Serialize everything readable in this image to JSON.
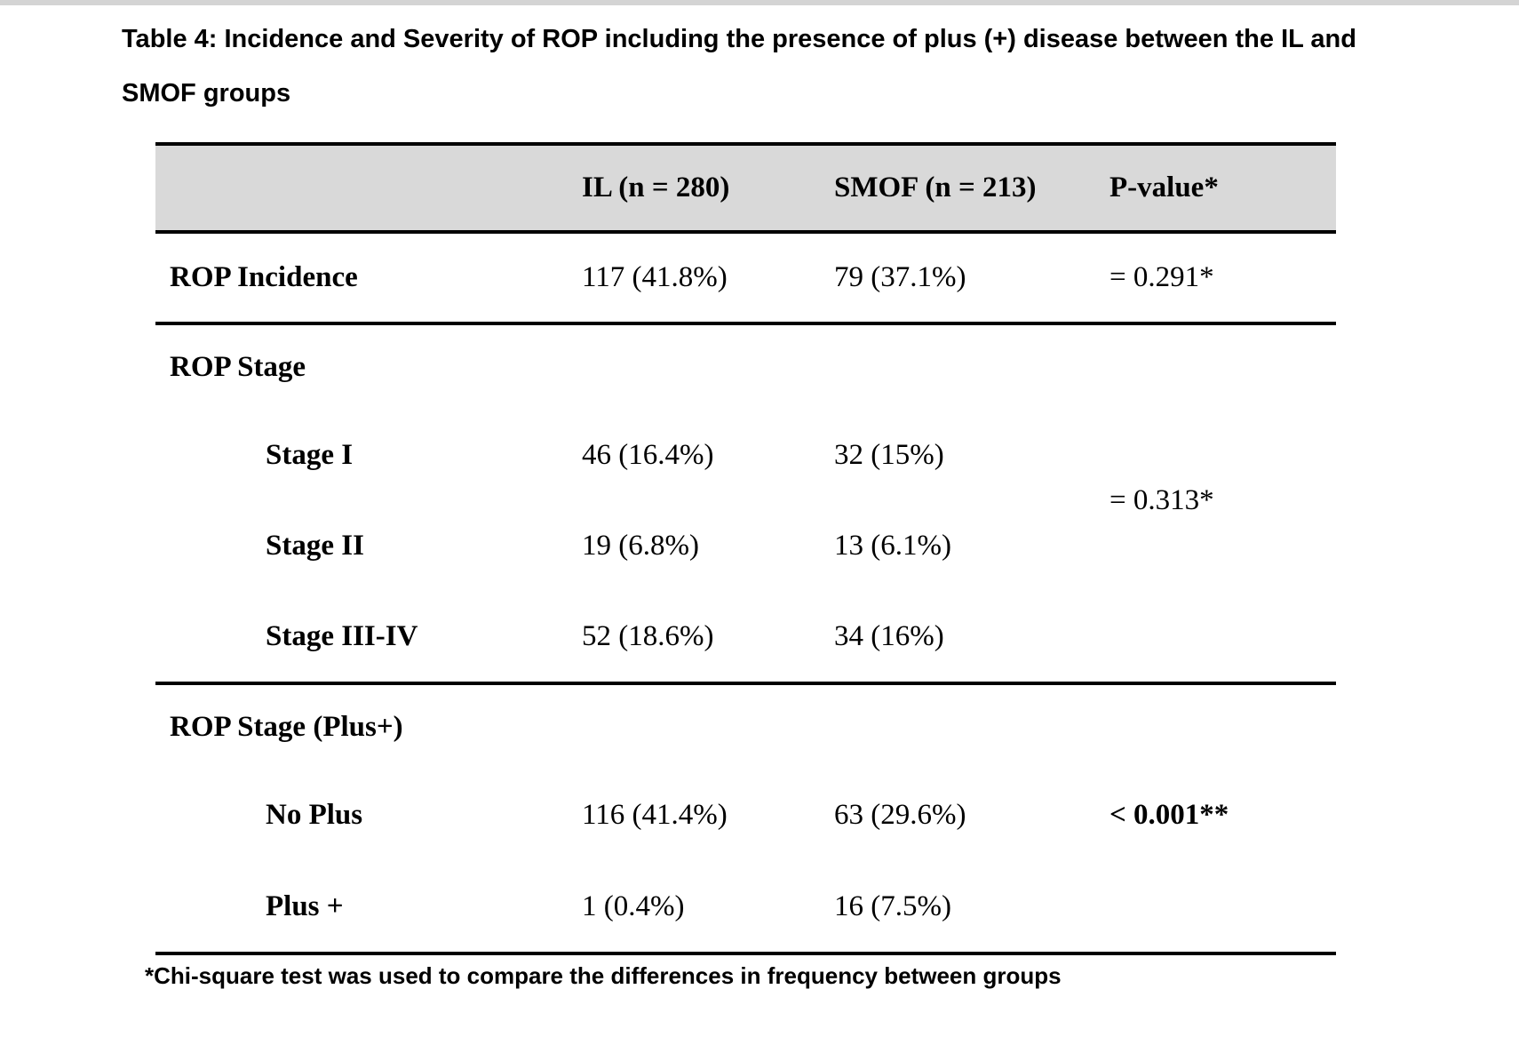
{
  "caption": {
    "line1": "Table 4: Incidence and Severity of ROP including the presence of plus (+) disease between the IL and",
    "line2": "SMOF groups"
  },
  "table": {
    "headers": [
      "",
      "IL (n = 280)",
      "SMOF (n = 213)",
      "P-value*"
    ],
    "incidence": {
      "label": "ROP Incidence",
      "il": "117 (41.8%)",
      "smof": "79 (37.1%)",
      "p": "= 0.291*"
    },
    "stage": {
      "label": "ROP Stage",
      "p": "= 0.313*",
      "rows": [
        {
          "label": "Stage I",
          "il": "46 (16.4%)",
          "smof": "32 (15%)"
        },
        {
          "label": "Stage II",
          "il": "19 (6.8%)",
          "smof": "13 (6.1%)"
        },
        {
          "label": "Stage III-IV",
          "il": "52 (18.6%)",
          "smof": "34 (16%)"
        }
      ]
    },
    "plus": {
      "label": "ROP Stage (Plus+)",
      "p": "< 0.001**",
      "rows": [
        {
          "label": "No Plus",
          "il": "116 (41.4%)",
          "smof": "63 (29.6%)"
        },
        {
          "label": "Plus +",
          "il": "1 (0.4%)",
          "smof": "16 (7.5%)"
        }
      ]
    }
  },
  "footnote": "*Chi-square test was used to compare the differences in frequency between groups",
  "colors": {
    "header_bg": "#d9d9d9",
    "rule": "#000000",
    "top_strip": "#d4d4d4"
  }
}
